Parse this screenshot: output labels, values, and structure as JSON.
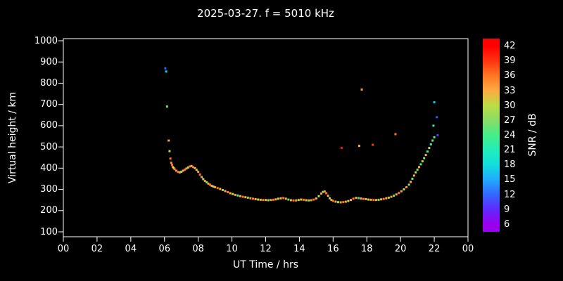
{
  "title": "2025-03-27. f = 5010 kHz",
  "axes": {
    "x_label": "UT Time / hrs",
    "y_label": "Virtual height / km",
    "x_tick_labels": [
      "00",
      "02",
      "04",
      "06",
      "08",
      "10",
      "12",
      "14",
      "16",
      "18",
      "20",
      "22",
      "00"
    ],
    "x_tick_values": [
      0,
      2,
      4,
      6,
      8,
      10,
      12,
      14,
      16,
      18,
      20,
      22,
      24
    ],
    "y_tick_labels": [
      "1000",
      "900",
      "800",
      "700",
      "600",
      "500",
      "400",
      "300",
      "200",
      "100"
    ],
    "y_tick_values": [
      1000,
      900,
      800,
      700,
      600,
      500,
      400,
      300,
      200,
      100
    ]
  },
  "colorbar": {
    "label": "SNR / dB",
    "tick_labels": [
      "42",
      "39",
      "36",
      "33",
      "30",
      "27",
      "24",
      "21",
      "18",
      "15",
      "12",
      "9",
      "6"
    ],
    "tick_values": [
      42,
      39,
      36,
      33,
      30,
      27,
      24,
      21,
      18,
      15,
      12,
      9,
      6
    ],
    "bar_range": [
      4.5,
      43.5
    ],
    "color_stops": [
      [
        6,
        "#9900ee"
      ],
      [
        9,
        "#6228ff"
      ],
      [
        12,
        "#3366ff"
      ],
      [
        15,
        "#22aaff"
      ],
      [
        18,
        "#11dddd"
      ],
      [
        21,
        "#22eebb"
      ],
      [
        24,
        "#44ee88"
      ],
      [
        27,
        "#88dd66"
      ],
      [
        30,
        "#bbdd44"
      ],
      [
        33,
        "#ffaa44"
      ],
      [
        36,
        "#ff7722"
      ],
      [
        39,
        "#ff3311"
      ],
      [
        42,
        "#ff0000"
      ]
    ]
  },
  "chart_data": {
    "type": "scatter",
    "title": "2025-03-27. f = 5010 kHz",
    "xlabel": "UT Time / hrs",
    "ylabel": "Virtual height / km",
    "color_label": "SNR / dB",
    "xlim": [
      0,
      24
    ],
    "ylim": [
      100,
      1000
    ],
    "grid": false,
    "background": "#000000",
    "point_format": [
      "ut_hours",
      "virtual_height_km",
      "snr_db"
    ],
    "points": [
      [
        6.05,
        870,
        12
      ],
      [
        6.1,
        855,
        17
      ],
      [
        6.15,
        690,
        26
      ],
      [
        6.25,
        530,
        33
      ],
      [
        6.3,
        480,
        31
      ],
      [
        6.35,
        445,
        36
      ],
      [
        6.4,
        425,
        34
      ],
      [
        6.45,
        415,
        36
      ],
      [
        6.5,
        405,
        33
      ],
      [
        6.55,
        400,
        30
      ],
      [
        6.6,
        395,
        36
      ],
      [
        6.7,
        388,
        34
      ],
      [
        6.8,
        382,
        36
      ],
      [
        6.9,
        380,
        33
      ],
      [
        7.0,
        383,
        28
      ],
      [
        7.1,
        388,
        33
      ],
      [
        7.2,
        393,
        36
      ],
      [
        7.3,
        398,
        34
      ],
      [
        7.4,
        403,
        30
      ],
      [
        7.5,
        408,
        36
      ],
      [
        7.6,
        410,
        33
      ],
      [
        7.7,
        405,
        36
      ],
      [
        7.8,
        400,
        33
      ],
      [
        7.9,
        392,
        30
      ],
      [
        8.0,
        383,
        34
      ],
      [
        8.1,
        370,
        36
      ],
      [
        8.2,
        358,
        33
      ],
      [
        8.3,
        348,
        30
      ],
      [
        8.4,
        340,
        34
      ],
      [
        8.5,
        333,
        27
      ],
      [
        8.6,
        327,
        33
      ],
      [
        8.7,
        322,
        36
      ],
      [
        8.8,
        317,
        33
      ],
      [
        8.9,
        313,
        30
      ],
      [
        9.0,
        310,
        34
      ],
      [
        9.15,
        306,
        36
      ],
      [
        9.3,
        302,
        33
      ],
      [
        9.45,
        297,
        27
      ],
      [
        9.6,
        292,
        33
      ],
      [
        9.75,
        287,
        36
      ],
      [
        9.9,
        282,
        33
      ],
      [
        10.05,
        278,
        30
      ],
      [
        10.2,
        274,
        34
      ],
      [
        10.35,
        271,
        24
      ],
      [
        10.5,
        268,
        33
      ],
      [
        10.65,
        265,
        36
      ],
      [
        10.8,
        263,
        33
      ],
      [
        10.95,
        261,
        27
      ],
      [
        11.1,
        258,
        34
      ],
      [
        11.25,
        256,
        36
      ],
      [
        11.4,
        254,
        33
      ],
      [
        11.55,
        252,
        30
      ],
      [
        11.7,
        251,
        33
      ],
      [
        11.85,
        250,
        36
      ],
      [
        12.0,
        250,
        33
      ],
      [
        12.15,
        249,
        27
      ],
      [
        12.3,
        250,
        34
      ],
      [
        12.45,
        251,
        36
      ],
      [
        12.6,
        253,
        33
      ],
      [
        12.75,
        256,
        30
      ],
      [
        12.9,
        258,
        33
      ],
      [
        13.05,
        259,
        36
      ],
      [
        13.2,
        256,
        33
      ],
      [
        13.35,
        252,
        24
      ],
      [
        13.5,
        249,
        33
      ],
      [
        13.65,
        248,
        36
      ],
      [
        13.8,
        248,
        34
      ],
      [
        13.95,
        250,
        30
      ],
      [
        14.1,
        252,
        33
      ],
      [
        14.25,
        251,
        36
      ],
      [
        14.4,
        249,
        33
      ],
      [
        14.55,
        248,
        27
      ],
      [
        14.7,
        249,
        34
      ],
      [
        14.85,
        252,
        36
      ],
      [
        15.0,
        257,
        33
      ],
      [
        15.15,
        268,
        30
      ],
      [
        15.3,
        280,
        33
      ],
      [
        15.4,
        288,
        27
      ],
      [
        15.5,
        290,
        34
      ],
      [
        15.6,
        282,
        36
      ],
      [
        15.7,
        270,
        33
      ],
      [
        15.8,
        258,
        30
      ],
      [
        15.9,
        250,
        33
      ],
      [
        16.0,
        246,
        36
      ],
      [
        16.15,
        242,
        33
      ],
      [
        16.3,
        240,
        27
      ],
      [
        16.45,
        239,
        34
      ],
      [
        16.6,
        240,
        36
      ],
      [
        16.75,
        242,
        33
      ],
      [
        16.9,
        245,
        30
      ],
      [
        17.05,
        250,
        33
      ],
      [
        17.2,
        256,
        36
      ],
      [
        17.35,
        260,
        34
      ],
      [
        17.5,
        259,
        24
      ],
      [
        17.65,
        257,
        33
      ],
      [
        17.8,
        255,
        36
      ],
      [
        17.95,
        254,
        33
      ],
      [
        18.1,
        252,
        30
      ],
      [
        18.25,
        251,
        34
      ],
      [
        18.4,
        250,
        36
      ],
      [
        18.55,
        250,
        33
      ],
      [
        18.7,
        251,
        27
      ],
      [
        18.85,
        253,
        33
      ],
      [
        19.0,
        255,
        36
      ],
      [
        19.15,
        258,
        33
      ],
      [
        19.3,
        261,
        30
      ],
      [
        19.45,
        265,
        34
      ],
      [
        19.6,
        270,
        27
      ],
      [
        19.75,
        276,
        33
      ],
      [
        19.9,
        283,
        36
      ],
      [
        20.05,
        291,
        33
      ],
      [
        20.2,
        300,
        30
      ],
      [
        20.35,
        310,
        34
      ],
      [
        20.5,
        322,
        27
      ],
      [
        20.6,
        335,
        33
      ],
      [
        20.7,
        350,
        24
      ],
      [
        20.8,
        365,
        33
      ],
      [
        20.9,
        380,
        30
      ],
      [
        21.0,
        393,
        27
      ],
      [
        21.1,
        405,
        33
      ],
      [
        21.2,
        418,
        24
      ],
      [
        21.3,
        432,
        30
      ],
      [
        21.4,
        447,
        27
      ],
      [
        21.5,
        462,
        33
      ],
      [
        21.6,
        478,
        24
      ],
      [
        21.7,
        495,
        30
      ],
      [
        21.8,
        512,
        21
      ],
      [
        21.9,
        530,
        27
      ],
      [
        22.0,
        545,
        24
      ],
      [
        16.5,
        495,
        40
      ],
      [
        17.55,
        505,
        33
      ],
      [
        17.7,
        770,
        34
      ],
      [
        18.35,
        510,
        39
      ],
      [
        19.7,
        560,
        36
      ],
      [
        21.95,
        600,
        22
      ],
      [
        22.0,
        710,
        17
      ],
      [
        22.15,
        640,
        11
      ],
      [
        22.2,
        555,
        9
      ]
    ]
  }
}
